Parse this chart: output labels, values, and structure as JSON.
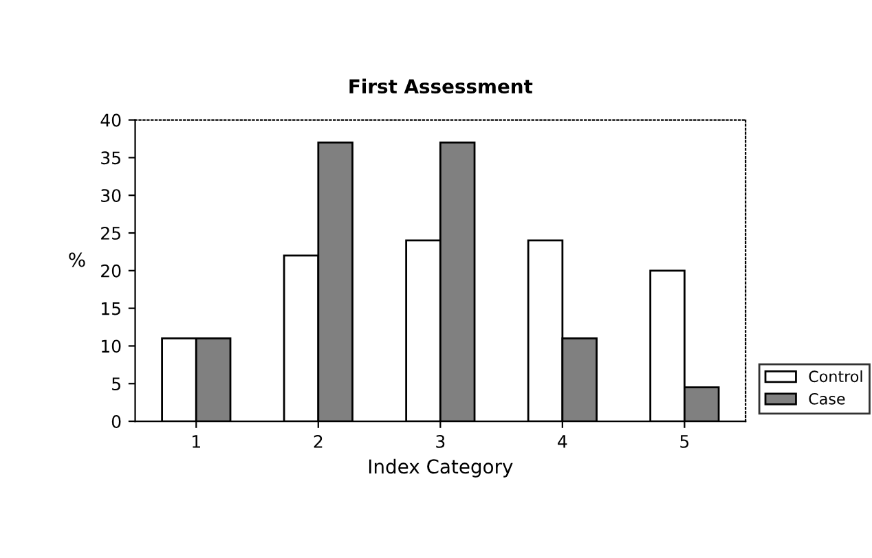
{
  "chart_data": {
    "type": "bar",
    "title": "First Assessment",
    "xlabel": "Index Category",
    "ylabel": "%",
    "categories": [
      "1",
      "2",
      "3",
      "4",
      "5"
    ],
    "series": [
      {
        "name": "Control",
        "color": "#ffffff",
        "values": [
          11,
          22,
          24,
          24,
          20
        ]
      },
      {
        "name": "Case",
        "color": "#808080",
        "values": [
          11,
          37,
          37,
          11,
          4.5
        ]
      }
    ],
    "ylim": [
      0,
      40
    ],
    "yticks": [
      0,
      5,
      10,
      15,
      20,
      25,
      30,
      35,
      40
    ],
    "grid": false,
    "legend": "right"
  }
}
